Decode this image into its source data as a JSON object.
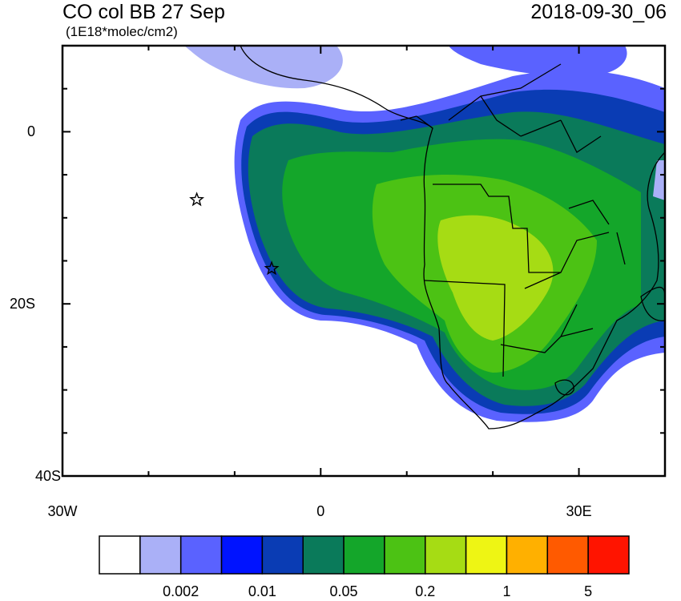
{
  "header": {
    "title": "CO col BB 27 Sep",
    "units": "(1E18*molec/cm2)",
    "timestamp": "2018-09-30_06"
  },
  "axes": {
    "y_ticks": [
      {
        "lat": 0,
        "label": "0"
      },
      {
        "lat": -20,
        "label": "20S"
      },
      {
        "lat": -40,
        "label": "40S"
      }
    ],
    "x_ticks": [
      {
        "lon": -30,
        "label": "30W"
      },
      {
        "lon": 0,
        "label": "0"
      },
      {
        "lon": 30,
        "label": "30E"
      }
    ],
    "lon_range": [
      -30,
      40
    ],
    "lat_range": [
      -40,
      10
    ]
  },
  "colorbar": {
    "colors": [
      "#ffffff",
      "#aab0f7",
      "#5a62ff",
      "#0013ff",
      "#0a3cb4",
      "#0a7a5a",
      "#14a62a",
      "#4cc214",
      "#a6dc14",
      "#eef514",
      "#ffb000",
      "#ff5a00",
      "#ff1400"
    ],
    "labels": [
      {
        "after_index": 1,
        "text": "0.002"
      },
      {
        "after_index": 3,
        "text": "0.01"
      },
      {
        "after_index": 5,
        "text": "0.05"
      },
      {
        "after_index": 7,
        "text": "0.2"
      },
      {
        "after_index": 9,
        "text": "1"
      },
      {
        "after_index": 11,
        "text": "5"
      }
    ]
  },
  "markers": [
    {
      "type": "star",
      "lon": -14.4,
      "lat": -7.9
    },
    {
      "type": "star",
      "lon": -5.7,
      "lat": -15.9
    }
  ]
}
